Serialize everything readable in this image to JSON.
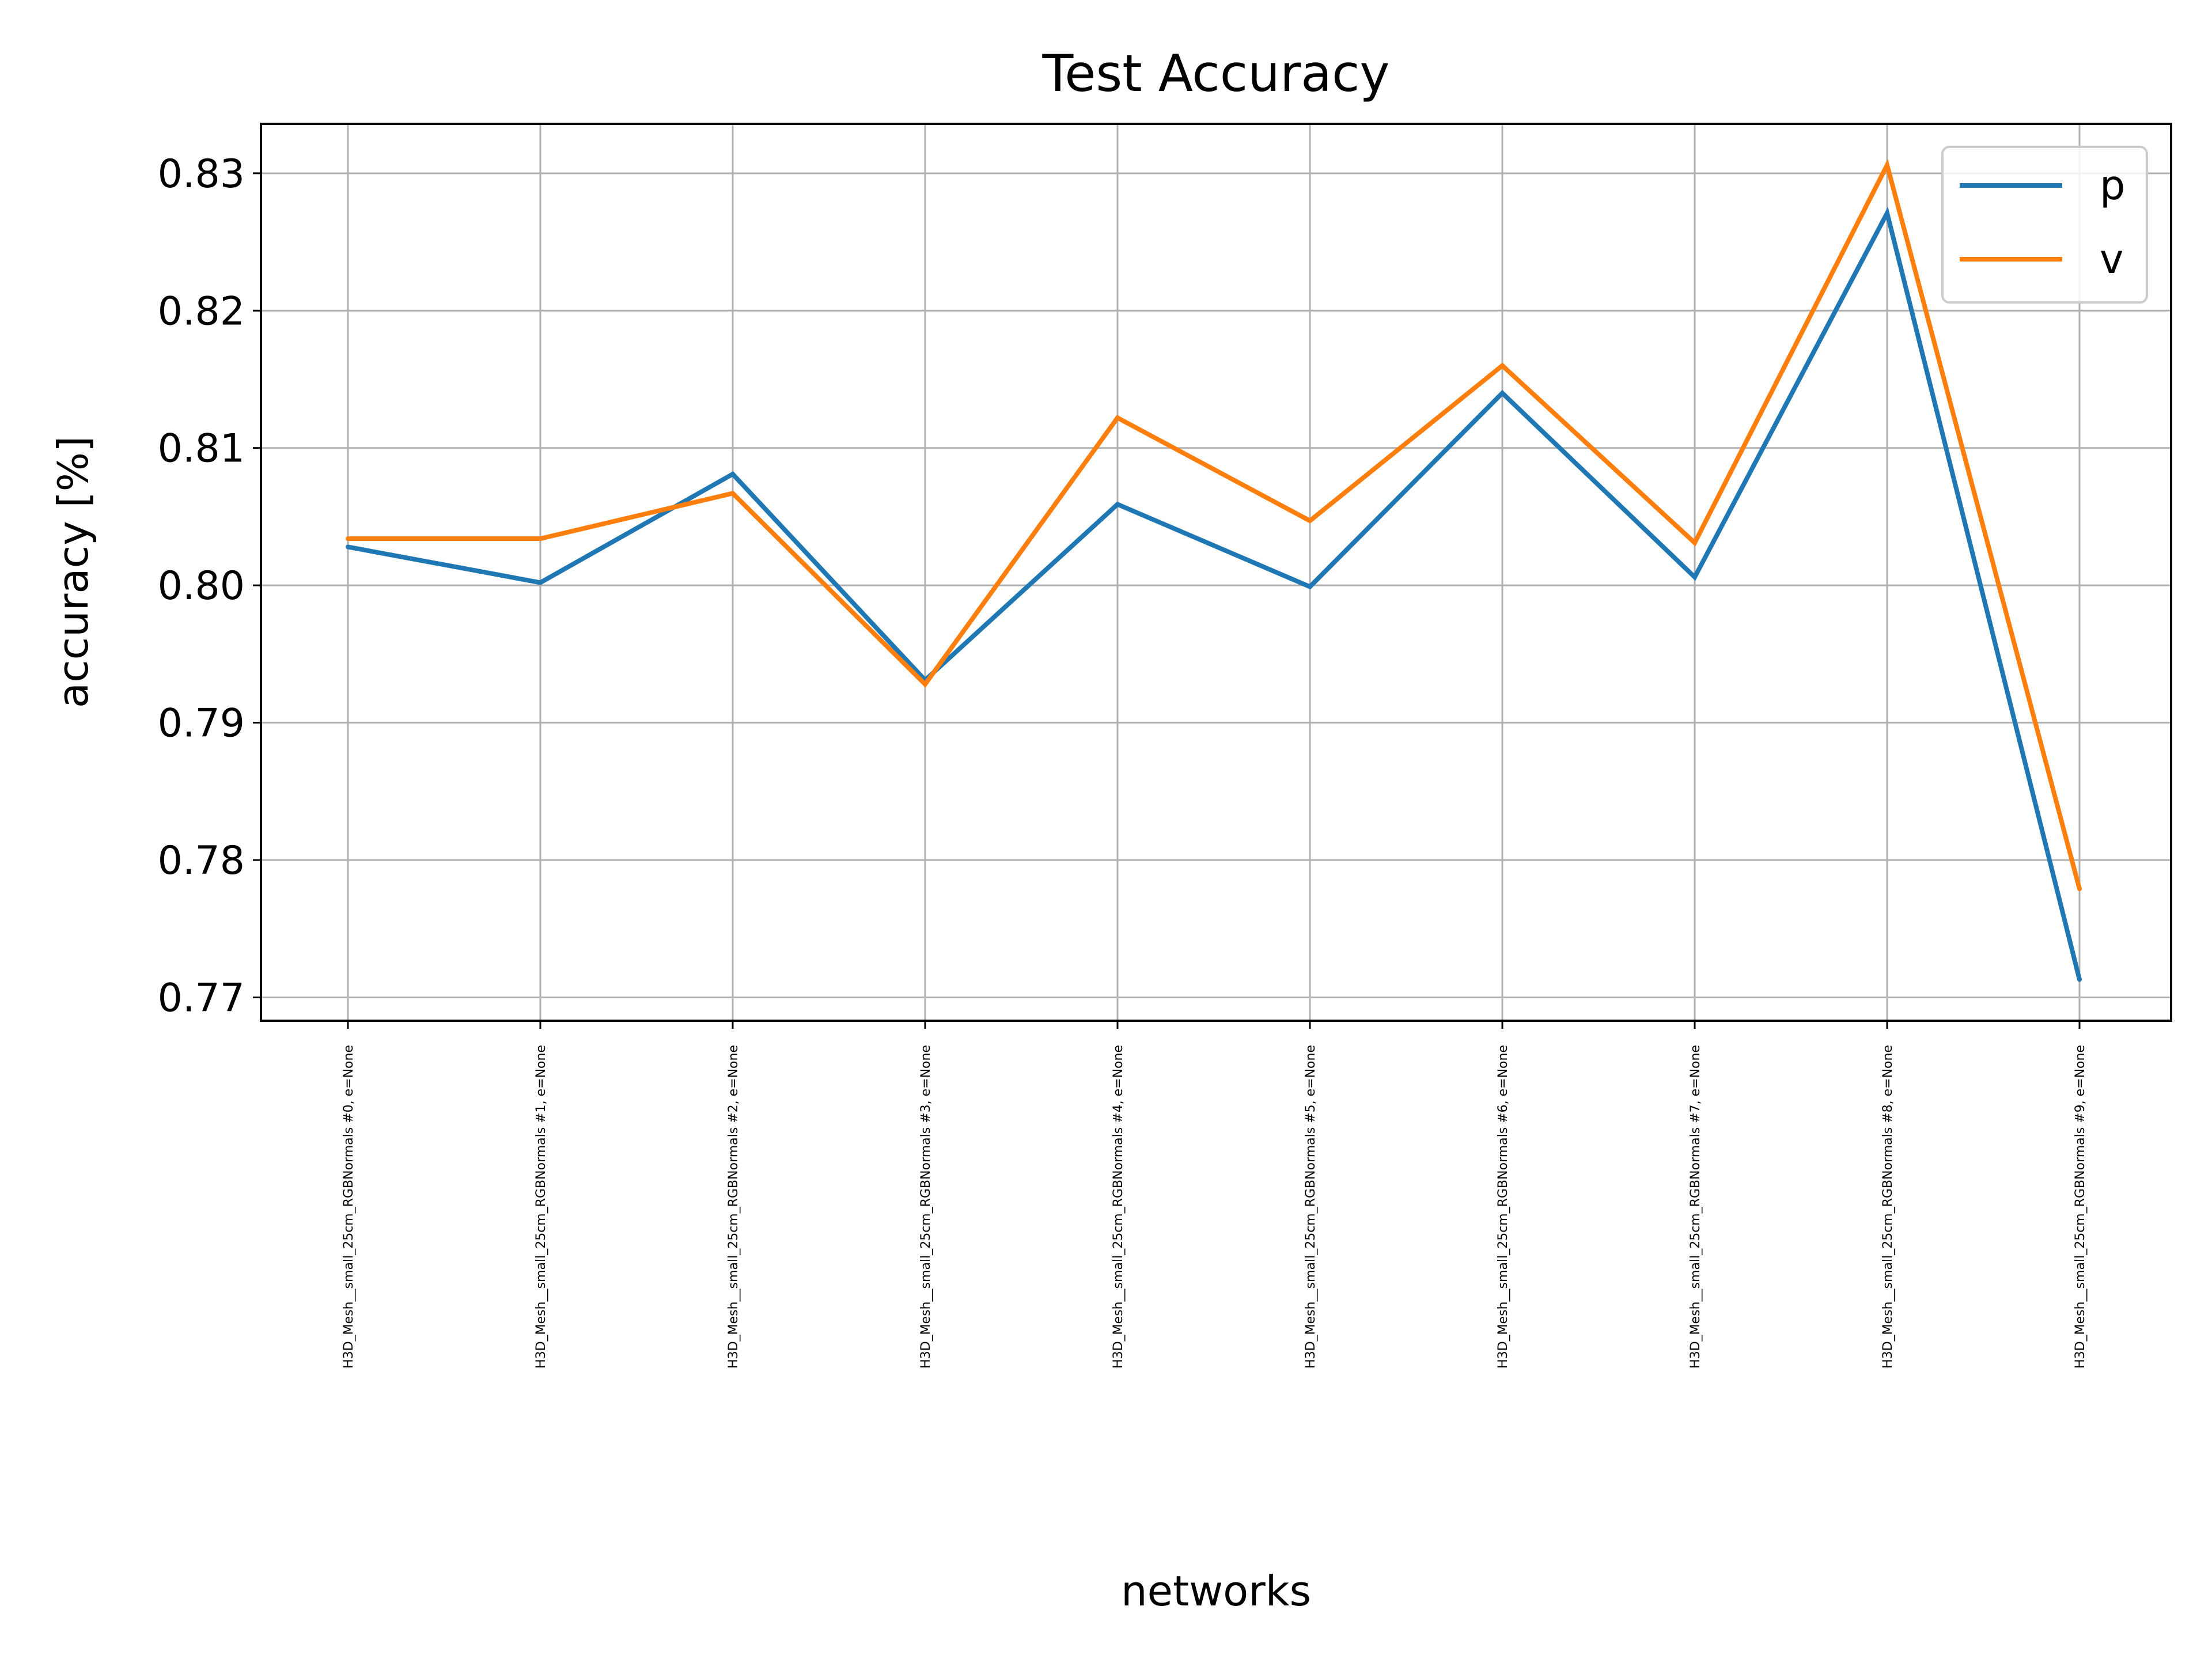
{
  "chart_data": {
    "type": "line",
    "title": "Test Accuracy",
    "xlabel": "networks",
    "ylabel": "accuracy [%]",
    "categories": [
      "H3D_Mesh__small_25cm_RGBNormals #0, e=None",
      "H3D_Mesh__small_25cm_RGBNormals #1, e=None",
      "H3D_Mesh__small_25cm_RGBNormals #2, e=None",
      "H3D_Mesh__small_25cm_RGBNormals #3, e=None",
      "H3D_Mesh__small_25cm_RGBNormals #4, e=None",
      "H3D_Mesh__small_25cm_RGBNormals #5, e=None",
      "H3D_Mesh__small_25cm_RGBNormals #6, e=None",
      "H3D_Mesh__small_25cm_RGBNormals #7, e=None",
      "H3D_Mesh__small_25cm_RGBNormals #8, e=None",
      "H3D_Mesh__small_25cm_RGBNormals #9, e=None"
    ],
    "series": [
      {
        "name": "p",
        "color": "#1f77b4",
        "values": [
          0.8028,
          0.8002,
          0.8081,
          0.7931,
          0.8059,
          0.7999,
          0.814,
          0.8006,
          0.8271,
          0.7713
        ]
      },
      {
        "name": "v",
        "color": "#ff7f0e",
        "values": [
          0.8034,
          0.8034,
          0.8067,
          0.7928,
          0.8122,
          0.8047,
          0.816,
          0.8031,
          0.8306,
          0.7779
        ]
      }
    ],
    "yticks": [
      "0.77",
      "0.78",
      "0.79",
      "0.80",
      "0.81",
      "0.82",
      "0.83"
    ],
    "ylim": [
      0.7683,
      0.8336
    ],
    "grid": true,
    "legend_position": "top-right"
  }
}
